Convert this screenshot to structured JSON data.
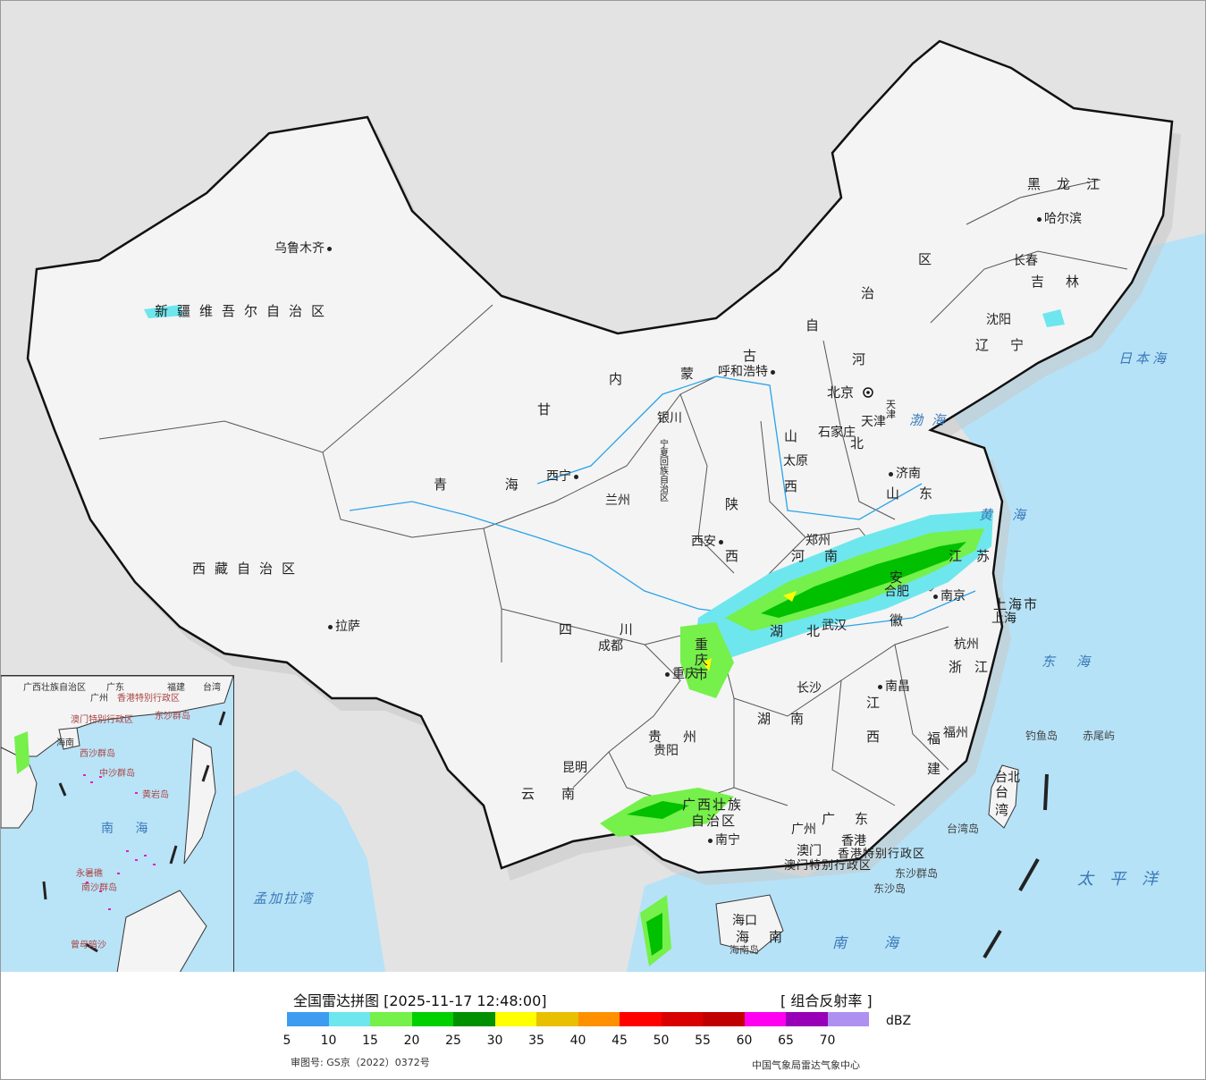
{
  "map": {
    "provinces": [
      {
        "id": "xinjiang",
        "text": "新疆维吾尔自治区"
      },
      {
        "id": "xizang",
        "text": "西藏自治区"
      },
      {
        "id": "qinghai",
        "text": "青 海"
      },
      {
        "id": "gansu",
        "text": "甘"
      },
      {
        "id": "neimenggu-1",
        "text": "内"
      },
      {
        "id": "neimenggu-2",
        "text": "蒙"
      },
      {
        "id": "neimenggu-3",
        "text": "古"
      },
      {
        "id": "neimenggu-4",
        "text": "自"
      },
      {
        "id": "neimenggu-5",
        "text": "治"
      },
      {
        "id": "neimenggu-6",
        "text": "区"
      },
      {
        "id": "heilongjiang",
        "text": "黑龙江"
      },
      {
        "id": "jilin",
        "text": "吉林"
      },
      {
        "id": "liaoning",
        "text": "辽宁"
      },
      {
        "id": "hebei-1",
        "text": "河"
      },
      {
        "id": "hebei-2",
        "text": "北"
      },
      {
        "id": "shanxi-1",
        "text": "山"
      },
      {
        "id": "shanxi-2",
        "text": "西"
      },
      {
        "id": "shandong",
        "text": "山东"
      },
      {
        "id": "henan",
        "text": "河南"
      },
      {
        "id": "shaanxi-1",
        "text": "陕"
      },
      {
        "id": "shaanxi-2",
        "text": "西"
      },
      {
        "id": "jiangsu",
        "text": "江苏"
      },
      {
        "id": "anhui-1",
        "text": "安"
      },
      {
        "id": "anhui-2",
        "text": "徽"
      },
      {
        "id": "hubei",
        "text": "湖北"
      },
      {
        "id": "sichuan",
        "text": "四 川"
      },
      {
        "id": "chongqing",
        "text": "重庆市"
      },
      {
        "id": "zhejiang",
        "text": "浙江"
      },
      {
        "id": "jiangxi-1",
        "text": "江"
      },
      {
        "id": "jiangxi-2",
        "text": "西"
      },
      {
        "id": "hunan",
        "text": "湖南"
      },
      {
        "id": "fujian-1",
        "text": "福"
      },
      {
        "id": "fujian-2",
        "text": "建"
      },
      {
        "id": "guizhou",
        "text": "贵州"
      },
      {
        "id": "yunnan",
        "text": "云南"
      },
      {
        "id": "guangxi-1",
        "text": "广西壮族"
      },
      {
        "id": "guangxi-2",
        "text": "自治区"
      },
      {
        "id": "guangdong",
        "text": "广东"
      },
      {
        "id": "hainan",
        "text": "海南"
      },
      {
        "id": "taiwan",
        "text": "台湾"
      },
      {
        "id": "shanghai",
        "text": "上海市"
      },
      {
        "id": "ningxia",
        "text": "宁夏回族自治区"
      },
      {
        "id": "hongkong",
        "text": "香港特别行政区"
      },
      {
        "id": "macau",
        "text": "澳门特别行政区"
      },
      {
        "id": "tianjin",
        "text": "天津"
      }
    ],
    "cities": [
      {
        "id": "urumqi",
        "text": "乌鲁木齐"
      },
      {
        "id": "lhasa",
        "text": "拉萨"
      },
      {
        "id": "xining",
        "text": "西宁"
      },
      {
        "id": "lanzhou",
        "text": "兰州"
      },
      {
        "id": "yinchuan",
        "text": "银川"
      },
      {
        "id": "hohhot",
        "text": "呼和浩特"
      },
      {
        "id": "beijing",
        "text": "北京"
      },
      {
        "id": "tianjin-city",
        "text": "天津"
      },
      {
        "id": "shijiazhuang",
        "text": "石家庄"
      },
      {
        "id": "taiyuan",
        "text": "太原"
      },
      {
        "id": "jinan",
        "text": "济南"
      },
      {
        "id": "zhengzhou",
        "text": "郑州"
      },
      {
        "id": "xian",
        "text": "西安"
      },
      {
        "id": "hefei",
        "text": "合肥"
      },
      {
        "id": "nanjing",
        "text": "南京"
      },
      {
        "id": "shanghai-city",
        "text": "上海"
      },
      {
        "id": "hangzhou",
        "text": "杭州"
      },
      {
        "id": "wuhan",
        "text": "武汉"
      },
      {
        "id": "chengdu",
        "text": "成都"
      },
      {
        "id": "chongqing-city",
        "text": "重庆"
      },
      {
        "id": "changsha",
        "text": "长沙"
      },
      {
        "id": "nanchang",
        "text": "南昌"
      },
      {
        "id": "fuzhou",
        "text": "福州"
      },
      {
        "id": "guiyang",
        "text": "贵阳"
      },
      {
        "id": "kunming",
        "text": "昆明"
      },
      {
        "id": "nanning",
        "text": "南宁"
      },
      {
        "id": "guangzhou",
        "text": "广州"
      },
      {
        "id": "macau-city",
        "text": "澳门"
      },
      {
        "id": "hongkong-city",
        "text": "香港"
      },
      {
        "id": "haikou",
        "text": "海口"
      },
      {
        "id": "taipei",
        "text": "台北"
      },
      {
        "id": "shenyang",
        "text": "沈阳"
      },
      {
        "id": "changchun",
        "text": "长春"
      },
      {
        "id": "harbin",
        "text": "哈尔滨"
      }
    ],
    "seas": [
      {
        "id": "sea-japan",
        "text": "日本海"
      },
      {
        "id": "bohai",
        "text": "渤海"
      },
      {
        "id": "yellow-sea",
        "text": "黄海"
      },
      {
        "id": "east-china-sea",
        "text": "东海"
      },
      {
        "id": "pacific",
        "text": "太平洋"
      },
      {
        "id": "south-china-sea",
        "text": "南海"
      },
      {
        "id": "bay-bengal",
        "text": "孟加拉湾"
      }
    ],
    "islands": [
      {
        "id": "diaoyu",
        "text": "钓鱼岛"
      },
      {
        "id": "chiwei",
        "text": "赤尾屿"
      },
      {
        "id": "taiwan-island",
        "text": "台湾岛"
      },
      {
        "id": "dongsha",
        "text": "东沙群岛"
      },
      {
        "id": "dongsha-island",
        "text": "东沙岛"
      },
      {
        "id": "hainan-island",
        "text": "海南岛"
      }
    ],
    "inset_labels": [
      {
        "id": "guangxi-inset",
        "text": "广西壮族自治区"
      },
      {
        "id": "guangdong-inset",
        "text": "广东"
      },
      {
        "id": "fujian-inset",
        "text": "福建"
      },
      {
        "id": "taiwan-inset",
        "text": "台湾"
      },
      {
        "id": "guangzhou-inset",
        "text": "广州"
      },
      {
        "id": "hongkong-inset",
        "text": "香港特别行政区"
      },
      {
        "id": "macau-inset",
        "text": "澳门特别行政区"
      },
      {
        "id": "dongsha-inset",
        "text": "东沙群岛"
      },
      {
        "id": "hainan-inset",
        "text": "海南"
      },
      {
        "id": "xisha-inset",
        "text": "西沙群岛"
      },
      {
        "id": "zhongsha-inset",
        "text": "中沙群岛"
      },
      {
        "id": "huangyan-inset",
        "text": "黄岩岛"
      },
      {
        "id": "nansha-inset",
        "text": "南沙群岛"
      },
      {
        "id": "nanhai-inset",
        "text": "南 海"
      },
      {
        "id": "yongshu-inset",
        "text": "永暑礁"
      },
      {
        "id": "zengmu-inset",
        "text": "曾母暗沙"
      }
    ]
  },
  "legend": {
    "title": "全国雷达拼图 [2025-11-17 12:48:00]",
    "product": "[ 组合反射率 ]",
    "unit": "dBZ",
    "ticks": [
      "5",
      "10",
      "15",
      "20",
      "25",
      "30",
      "35",
      "40",
      "45",
      "50",
      "55",
      "60",
      "65",
      "70"
    ],
    "colors": [
      "#3e9cf0",
      "#6ee6ee",
      "#76f04a",
      "#00d000",
      "#009000",
      "#ffff00",
      "#e8c000",
      "#ff9000",
      "#ff0000",
      "#d80000",
      "#c00000",
      "#ff00f0",
      "#9800b8",
      "#ae90f0"
    ],
    "permit": "审图号: GS京（2022）0372号",
    "agency": "中国气象局雷达气象中心"
  }
}
